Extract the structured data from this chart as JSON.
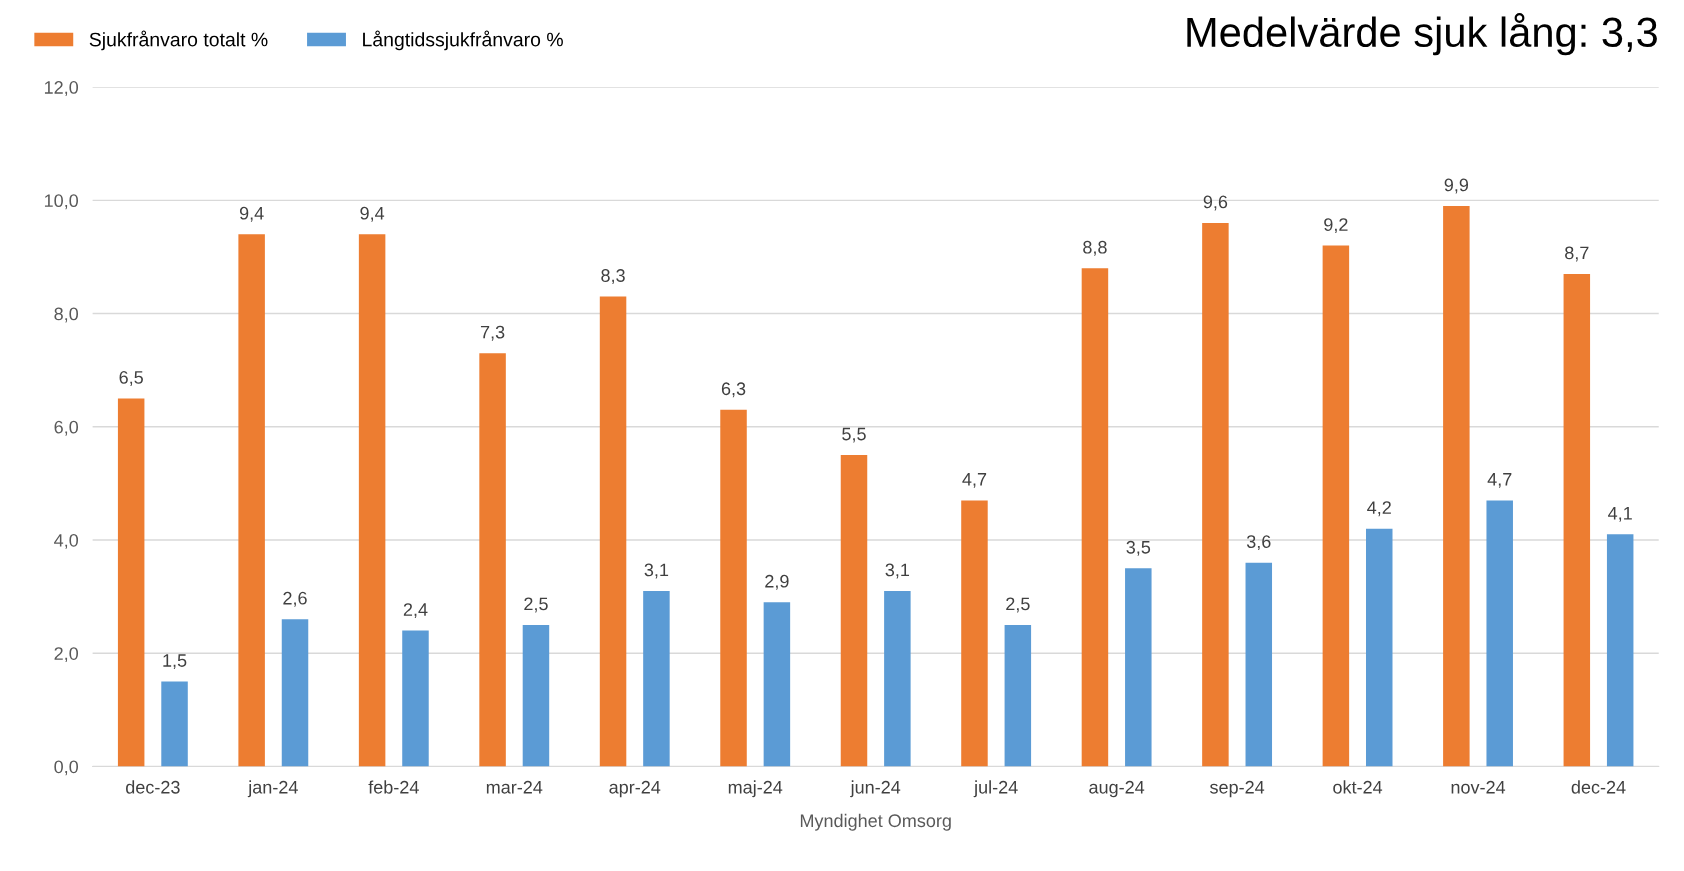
{
  "chart_data": {
    "type": "bar",
    "title": "Medelvärde sjuk lång: 3,3",
    "xlabel": "Myndighet Omsorg",
    "categories": [
      "dec-23",
      "jan-24",
      "feb-24",
      "mar-24",
      "apr-24",
      "maj-24",
      "jun-24",
      "jul-24",
      "aug-24",
      "sep-24",
      "okt-24",
      "nov-24",
      "dec-24"
    ],
    "series": [
      {
        "name": "Sjukfrånvaro totalt %",
        "color": "#ed7d31",
        "values": [
          6.5,
          9.4,
          9.4,
          7.3,
          8.3,
          6.3,
          5.5,
          4.7,
          8.8,
          9.6,
          9.2,
          9.9,
          8.7
        ],
        "value_labels": [
          "6,5",
          "9,4",
          "9,4",
          "7,3",
          "8,3",
          "6,3",
          "5,5",
          "4,7",
          "8,8",
          "9,6",
          "9,2",
          "9,9",
          "8,7"
        ]
      },
      {
        "name": "Långtidssjukfrånvaro %",
        "color": "#5b9bd5",
        "values": [
          1.5,
          2.6,
          2.4,
          2.5,
          3.1,
          2.9,
          3.1,
          2.5,
          3.5,
          3.6,
          4.2,
          4.7,
          4.1
        ],
        "value_labels": [
          "1,5",
          "2,6",
          "2,4",
          "2,5",
          "3,1",
          "2,9",
          "3,1",
          "2,5",
          "3,5",
          "3,6",
          "4,2",
          "4,7",
          "4,1"
        ]
      }
    ],
    "ylim": [
      0,
      12
    ],
    "yticks": [
      {
        "value": 0,
        "label": "0,0"
      },
      {
        "value": 2,
        "label": "2,0"
      },
      {
        "value": 4,
        "label": "4,0"
      },
      {
        "value": 6,
        "label": "6,0"
      },
      {
        "value": 8,
        "label": "8,0"
      },
      {
        "value": 10,
        "label": "10,0"
      },
      {
        "value": 12,
        "label": "12,0"
      }
    ],
    "grid": "y",
    "legend": "top left"
  }
}
